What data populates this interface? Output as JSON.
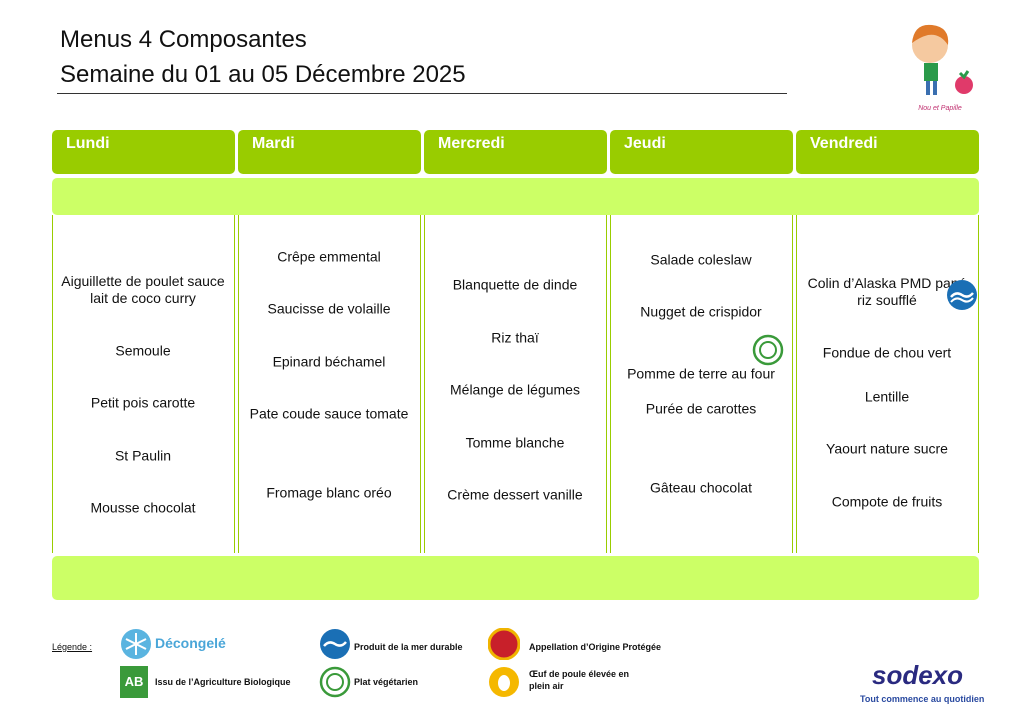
{
  "header": {
    "title": "Menus  4 Composantes",
    "subtitle": "Semaine du 01 au 05 Décembre 2025",
    "mascot_caption": "Nou et Papille"
  },
  "days": [
    {
      "name": "Lundi",
      "items": [
        "Aiguillette de poulet sauce lait de coco curry",
        "Semoule",
        "Petit pois carotte",
        "St Paulin",
        "Mousse chocolat"
      ]
    },
    {
      "name": "Mardi",
      "items": [
        "Crêpe emmental",
        "Saucisse de volaille",
        "Epinard béchamel",
        "Pate coude sauce tomate",
        "Fromage blanc oréo"
      ]
    },
    {
      "name": "Mercredi",
      "items": [
        "Blanquette de dinde",
        "Riz thaï",
        "Mélange de légumes",
        "Tomme blanche",
        "Crème dessert vanille"
      ]
    },
    {
      "name": "Jeudi",
      "items": [
        "Salade coleslaw",
        "Nugget de crispidor",
        "Pomme de terre au four",
        "Purée de carottes",
        "Gâteau chocolat"
      ]
    },
    {
      "name": "Vendredi",
      "items": [
        "Colin d’Alaska PMD pané riz soufflé",
        "Fondue de chou vert",
        "Lentille",
        "Yaourt nature sucre",
        "Compote de fruits"
      ]
    }
  ],
  "legend": {
    "title": "Légende :",
    "items": [
      "Décongelé",
      "Produit de la mer durable",
      "Appellation d’Origine Protégée",
      "Issu de l’Agriculture Biologique",
      "Plat végétarien",
      "Œuf de poule élevée en plein air"
    ]
  },
  "brand": {
    "name": "sodexo",
    "tagline": "Tout commence au quotidien"
  }
}
